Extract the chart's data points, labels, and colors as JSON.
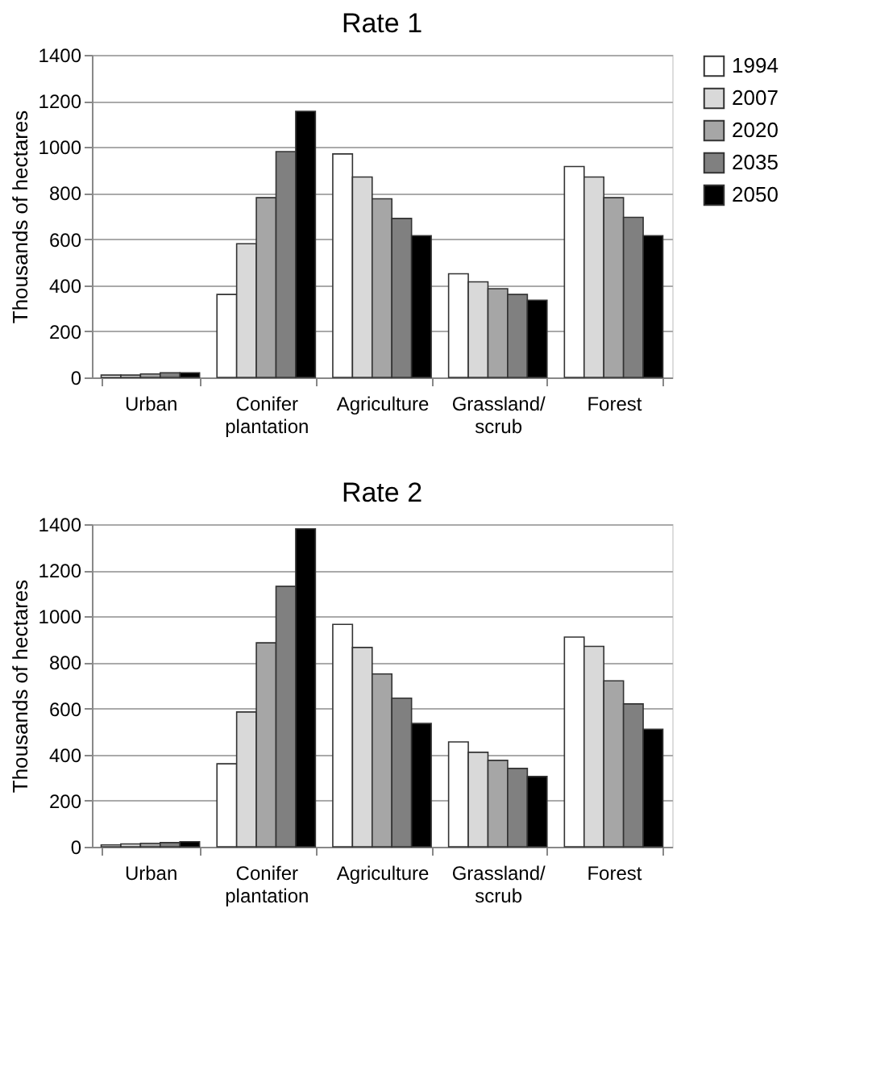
{
  "chart_data": [
    {
      "type": "bar",
      "title": "Rate 1",
      "ylabel": "Thousands of hectares",
      "categories": [
        "Urban",
        "Conifer plantation",
        "Agriculture",
        "Grassland/ scrub",
        "Forest"
      ],
      "ylim": [
        0,
        1400
      ],
      "yticks": [
        0,
        200,
        400,
        600,
        800,
        1000,
        1200,
        1400
      ],
      "grid": "y",
      "legend": "right",
      "series": [
        {
          "name": "1994",
          "color": "#ffffff",
          "values": [
            10,
            360,
            970,
            450,
            915
          ]
        },
        {
          "name": "2007",
          "color": "#d9d9d9",
          "values": [
            10,
            580,
            870,
            415,
            870
          ]
        },
        {
          "name": "2020",
          "color": "#a6a6a6",
          "values": [
            15,
            780,
            775,
            385,
            780
          ]
        },
        {
          "name": "2035",
          "color": "#808080",
          "values": [
            20,
            980,
            690,
            360,
            695
          ]
        },
        {
          "name": "2050",
          "color": "#000000",
          "values": [
            20,
            1155,
            615,
            335,
            615
          ]
        }
      ]
    },
    {
      "type": "bar",
      "title": "Rate 2",
      "ylabel": "Thousands of hectares",
      "categories": [
        "Urban",
        "Conifer plantation",
        "Agriculture",
        "Grassland/ scrub",
        "Forest"
      ],
      "ylim": [
        0,
        1400
      ],
      "yticks": [
        0,
        200,
        400,
        600,
        800,
        1000,
        1200,
        1400
      ],
      "grid": "y",
      "legend": "right",
      "series": [
        {
          "name": "1994",
          "color": "#ffffff",
          "values": [
            8,
            360,
            965,
            455,
            910
          ]
        },
        {
          "name": "2007",
          "color": "#d9d9d9",
          "values": [
            12,
            585,
            865,
            410,
            870
          ]
        },
        {
          "name": "2020",
          "color": "#a6a6a6",
          "values": [
            15,
            885,
            750,
            375,
            720
          ]
        },
        {
          "name": "2035",
          "color": "#808080",
          "values": [
            18,
            1130,
            645,
            340,
            620
          ]
        },
        {
          "name": "2050",
          "color": "#000000",
          "values": [
            22,
            1380,
            535,
            305,
            510
          ]
        }
      ]
    }
  ]
}
